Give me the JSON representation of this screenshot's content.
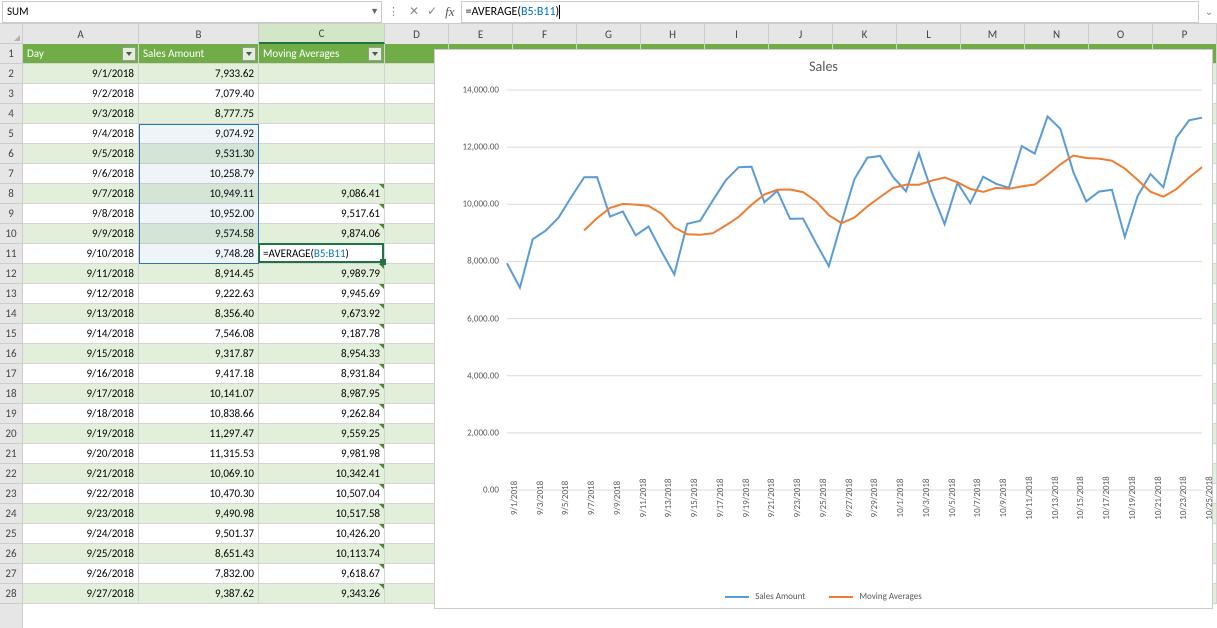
{
  "name_box": "SUM",
  "formula": {
    "prefix": "=AVERAGE(",
    "ref": "B5:B11",
    "suffix": ")"
  },
  "columns": [
    {
      "letter": "A",
      "width": 116
    },
    {
      "letter": "B",
      "width": 120
    },
    {
      "letter": "C",
      "width": 126
    },
    {
      "letter": "D",
      "width": 64
    },
    {
      "letter": "E",
      "width": 64
    },
    {
      "letter": "F",
      "width": 64
    },
    {
      "letter": "G",
      "width": 64
    },
    {
      "letter": "H",
      "width": 64
    },
    {
      "letter": "I",
      "width": 64
    },
    {
      "letter": "J",
      "width": 64
    },
    {
      "letter": "K",
      "width": 64
    },
    {
      "letter": "L",
      "width": 64
    },
    {
      "letter": "M",
      "width": 64
    },
    {
      "letter": "N",
      "width": 64
    },
    {
      "letter": "O",
      "width": 64
    },
    {
      "letter": "P",
      "width": 64
    }
  ],
  "headers": [
    "Day",
    "Sales Amount",
    "Moving Averages"
  ],
  "rows": [
    {
      "n": 2,
      "day": "9/1/2018",
      "sales": "7,933.62",
      "ma": ""
    },
    {
      "n": 3,
      "day": "9/2/2018",
      "sales": "7,079.40",
      "ma": ""
    },
    {
      "n": 4,
      "day": "9/3/2018",
      "sales": "8,777.75",
      "ma": ""
    },
    {
      "n": 5,
      "day": "9/4/2018",
      "sales": "9,074.92",
      "ma": ""
    },
    {
      "n": 6,
      "day": "9/5/2018",
      "sales": "9,531.30",
      "ma": ""
    },
    {
      "n": 7,
      "day": "9/6/2018",
      "sales": "10,258.79",
      "ma": ""
    },
    {
      "n": 8,
      "day": "9/7/2018",
      "sales": "10,949.11",
      "ma": "9,086.41"
    },
    {
      "n": 9,
      "day": "9/8/2018",
      "sales": "10,952.00",
      "ma": "9,517.61"
    },
    {
      "n": 10,
      "day": "9/9/2018",
      "sales": "9,574.58",
      "ma": "9,874.06"
    },
    {
      "n": 11,
      "day": "9/10/2018",
      "sales": "9,748.28",
      "ma": "=AVERAGE(B5:B11)"
    },
    {
      "n": 12,
      "day": "9/11/2018",
      "sales": "8,914.45",
      "ma": "9,989.79"
    },
    {
      "n": 13,
      "day": "9/12/2018",
      "sales": "9,222.63",
      "ma": "9,945.69"
    },
    {
      "n": 14,
      "day": "9/13/2018",
      "sales": "8,356.40",
      "ma": "9,673.92"
    },
    {
      "n": 15,
      "day": "9/14/2018",
      "sales": "7,546.08",
      "ma": "9,187.78"
    },
    {
      "n": 16,
      "day": "9/15/2018",
      "sales": "9,317.87",
      "ma": "8,954.33"
    },
    {
      "n": 17,
      "day": "9/16/2018",
      "sales": "9,417.18",
      "ma": "8,931.84"
    },
    {
      "n": 18,
      "day": "9/17/2018",
      "sales": "10,141.07",
      "ma": "8,987.95"
    },
    {
      "n": 19,
      "day": "9/18/2018",
      "sales": "10,838.66",
      "ma": "9,262.84"
    },
    {
      "n": 20,
      "day": "9/19/2018",
      "sales": "11,297.47",
      "ma": "9,559.25"
    },
    {
      "n": 21,
      "day": "9/20/2018",
      "sales": "11,315.53",
      "ma": "9,981.98"
    },
    {
      "n": 22,
      "day": "9/21/2018",
      "sales": "10,069.10",
      "ma": "10,342.41"
    },
    {
      "n": 23,
      "day": "9/22/2018",
      "sales": "10,470.30",
      "ma": "10,507.04"
    },
    {
      "n": 24,
      "day": "9/23/2018",
      "sales": "9,490.98",
      "ma": "10,517.58"
    },
    {
      "n": 25,
      "day": "9/24/2018",
      "sales": "9,501.37",
      "ma": "10,426.20"
    },
    {
      "n": 26,
      "day": "9/25/2018",
      "sales": "8,651.43",
      "ma": "10,113.74"
    },
    {
      "n": 27,
      "day": "9/26/2018",
      "sales": "7,832.00",
      "ma": "9,618.67"
    },
    {
      "n": 28,
      "day": "9/27/2018",
      "sales": "9,387.62",
      "ma": "9,343.26"
    }
  ],
  "selection": {
    "range": "B5:B11",
    "active": "C11"
  },
  "chart": {
    "title": "Sales",
    "series": [
      {
        "name": "Sales Amount",
        "color": "#5b9bd5",
        "width": 2
      },
      {
        "name": "Moving Averages",
        "color": "#ed7d31",
        "width": 2
      }
    ],
    "y": {
      "min": 0,
      "max": 14000,
      "step": 2000,
      "format": "0,0.00"
    },
    "y_ticks": [
      "0.00",
      "2,000.00",
      "4,000.00",
      "6,000.00",
      "8,000.00",
      "10,000.00",
      "12,000.00",
      "14,000.00"
    ],
    "x_labels": [
      "9/1/2018",
      "9/3/2018",
      "9/5/2018",
      "9/7/2018",
      "9/9/2018",
      "9/11/2018",
      "9/13/2018",
      "9/15/2018",
      "9/17/2018",
      "9/19/2018",
      "9/21/2018",
      "9/23/2018",
      "9/25/2018",
      "9/27/2018",
      "9/29/2018",
      "10/1/2018",
      "10/3/2018",
      "10/5/2018",
      "10/7/2018",
      "10/9/2018",
      "10/11/2018",
      "10/13/2018",
      "10/15/2018",
      "10/17/2018",
      "10/19/2018",
      "10/21/2018",
      "10/23/2018",
      "10/25/2018"
    ],
    "n_points": 55,
    "sales_data": [
      7933,
      7079,
      8777,
      9074,
      9531,
      10258,
      10949,
      10952,
      9574,
      9748,
      8914,
      9222,
      8356,
      7546,
      9317,
      9417,
      10141,
      10838,
      11297,
      11315,
      10069,
      10470,
      9490,
      9501,
      8651,
      7832,
      9387,
      10884,
      11633,
      11689,
      10953,
      10456,
      11786,
      10445,
      9305,
      10747,
      10041,
      10966,
      10718,
      10577,
      12035,
      11775,
      13075,
      12637,
      11135,
      10100,
      10445,
      10509,
      8856,
      10286,
      11058,
      10597,
      12330,
      12938,
      13031
    ],
    "ma_data": [
      null,
      null,
      null,
      null,
      null,
      null,
      9086,
      9517,
      9874,
      10012,
      9989,
      9945,
      9673,
      9187,
      8954,
      8931,
      8987,
      9262,
      9559,
      9981,
      10342,
      10507,
      10517,
      10426,
      10113,
      9618,
      9343,
      9539,
      9925,
      10254,
      10575,
      10690,
      10684,
      10827,
      10938,
      10769,
      10538,
      10435,
      10573,
      10542,
      10627,
      10694,
      11027,
      11397,
      11707,
      11619,
      11600,
      11525,
      11251,
      10852,
      10441,
      10264,
      10527,
      10939,
      11299
    ]
  },
  "colors": {
    "header_bg": "#70ad47",
    "band_bg": "#e2efda",
    "grid_line": "#d4d4d4",
    "sel_border": "#2e75b6",
    "active_border": "#217346",
    "tri": "#548235"
  }
}
